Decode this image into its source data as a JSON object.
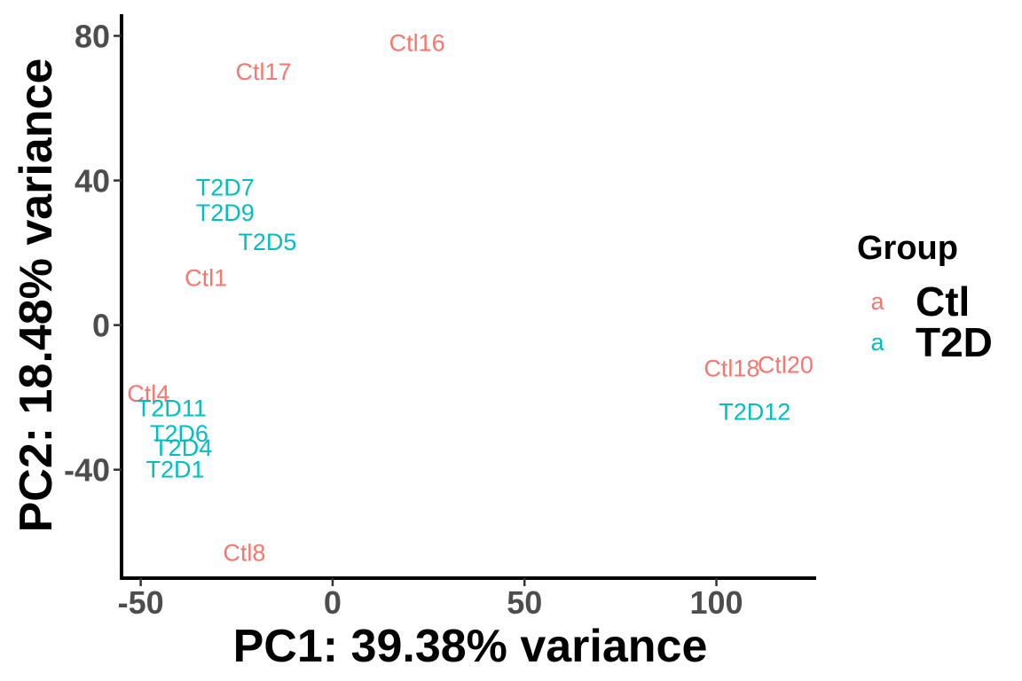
{
  "chart_data": {
    "type": "scatter",
    "xlabel": "PC1: 39.38% variance",
    "ylabel": "PC2: 18.48% variance",
    "xlim": [
      -55,
      126
    ],
    "ylim": [
      -70,
      86
    ],
    "xticks": [
      -50,
      0,
      50,
      100
    ],
    "yticks": [
      80,
      40,
      0,
      -40
    ],
    "grid": false,
    "legend": {
      "title": "Group",
      "position": "right",
      "key_glyph": "a",
      "entries": [
        {
          "name": "Ctl",
          "color": "#F8766D"
        },
        {
          "name": "T2D",
          "color": "#00BFC4"
        }
      ]
    },
    "series": [
      {
        "name": "Ctl",
        "color": "#F8766D",
        "points": [
          {
            "label": "Ctl16",
            "x": 22,
            "y": 78
          },
          {
            "label": "Ctl17",
            "x": -18,
            "y": 70
          },
          {
            "label": "Ctl1",
            "x": -33,
            "y": 13
          },
          {
            "label": "Ctl4",
            "x": -48,
            "y": -19
          },
          {
            "label": "Ctl8",
            "x": -23,
            "y": -63
          },
          {
            "label": "Ctl18",
            "x": 104,
            "y": -12
          },
          {
            "label": "Ctl20",
            "x": 118,
            "y": -11
          }
        ]
      },
      {
        "name": "T2D",
        "color": "#00BFC4",
        "points": [
          {
            "label": "T2D7",
            "x": -28,
            "y": 38
          },
          {
            "label": "T2D9",
            "x": -28,
            "y": 31
          },
          {
            "label": "T2D5",
            "x": -17,
            "y": 23
          },
          {
            "label": "T2D11",
            "x": -42,
            "y": -23
          },
          {
            "label": "T2D6",
            "x": -40,
            "y": -30
          },
          {
            "label": "T2D4",
            "x": -39,
            "y": -34
          },
          {
            "label": "T2D1",
            "x": -41,
            "y": -40
          },
          {
            "label": "T2D12",
            "x": 110,
            "y": -24
          }
        ]
      }
    ]
  }
}
